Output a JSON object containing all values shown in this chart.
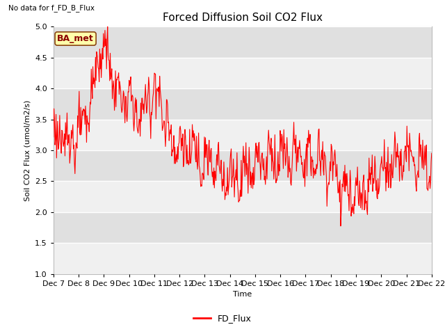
{
  "title": "Forced Diffusion Soil CO2 Flux",
  "no_data_text": "No data for f_FD_B_Flux",
  "ylabel": "Soil CO2 Flux (umol/m2/s)",
  "xlabel": "Time",
  "ylim": [
    1.0,
    5.0
  ],
  "yticks": [
    1.0,
    1.5,
    2.0,
    2.5,
    3.0,
    3.5,
    4.0,
    4.5,
    5.0
  ],
  "line_color": "#ff0000",
  "line_width": 0.8,
  "bg_color": "#e8e8e8",
  "fig_bg_color": "#ffffff",
  "legend_label": "FD_Flux",
  "ba_met_label": "BA_met",
  "ba_met_bg": "#ffffaa",
  "ba_met_edge": "#8B4513",
  "title_fontsize": 11,
  "label_fontsize": 8,
  "tick_fontsize": 8,
  "n_points": 720
}
